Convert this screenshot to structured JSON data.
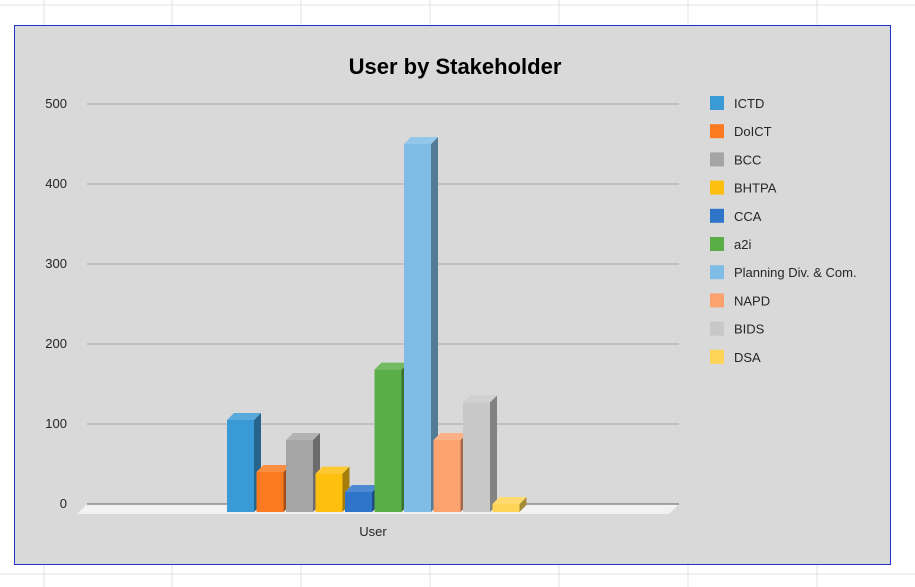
{
  "chart_data": {
    "type": "bar",
    "title": "User by Stakeholder",
    "categories": [
      "User"
    ],
    "xlabel": "",
    "ylabel": "",
    "ylim": [
      0,
      500
    ],
    "yticks": [
      0,
      100,
      200,
      300,
      400,
      500
    ],
    "grid": true,
    "legend_position": "right",
    "style": "3d-clustered-column",
    "series": [
      {
        "name": "ICTD",
        "values": [
          115
        ],
        "color": "#3a9ad6"
      },
      {
        "name": "DoICT",
        "values": [
          50
        ],
        "color": "#fb7a21"
      },
      {
        "name": "BCC",
        "values": [
          90
        ],
        "color": "#a5a5a5"
      },
      {
        "name": "BHTPA",
        "values": [
          48
        ],
        "color": "#fdc00f"
      },
      {
        "name": "CCA",
        "values": [
          25
        ],
        "color": "#2e75c9"
      },
      {
        "name": "a2i",
        "values": [
          178
        ],
        "color": "#5aae47"
      },
      {
        "name": "Planning Div. & Com.",
        "values": [
          460
        ],
        "color": "#7fbde6"
      },
      {
        "name": "NAPD",
        "values": [
          90
        ],
        "color": "#fba26f"
      },
      {
        "name": "BIDS",
        "values": [
          137
        ],
        "color": "#c8c8c8"
      },
      {
        "name": "DSA",
        "values": [
          10
        ],
        "color": "#fed456"
      }
    ]
  }
}
